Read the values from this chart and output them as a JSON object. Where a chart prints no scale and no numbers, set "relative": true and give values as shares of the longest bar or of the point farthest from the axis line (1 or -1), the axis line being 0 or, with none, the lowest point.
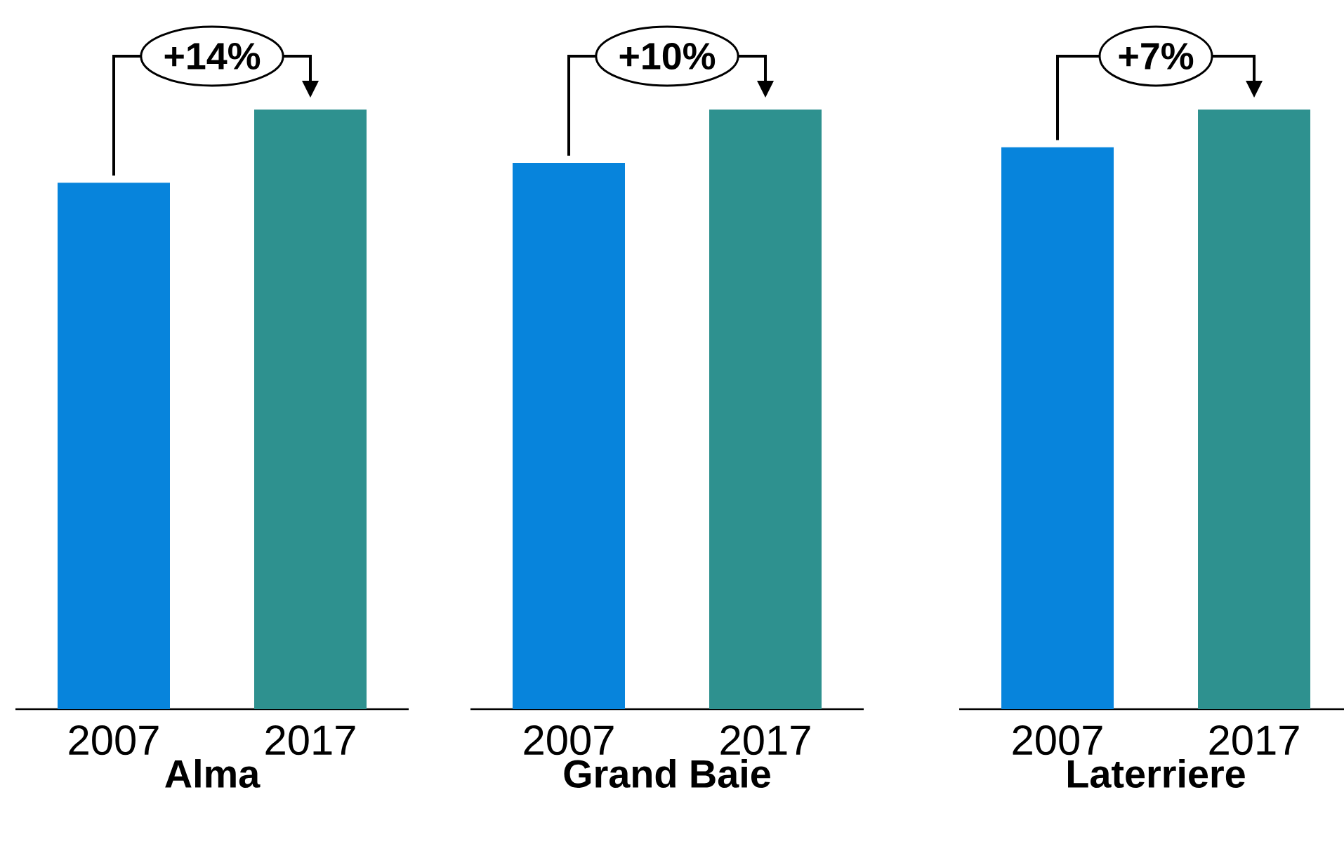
{
  "chart_data": [
    {
      "type": "bar",
      "relative": true,
      "categories": [
        "2007",
        "2017"
      ],
      "values": [
        0.878,
        1
      ],
      "colors": [
        "#0784dc",
        "#2e918f"
      ],
      "xlabel": "Alma",
      "annotations": [
        "+14%"
      ]
    },
    {
      "type": "bar",
      "relative": true,
      "categories": [
        "2007",
        "2017"
      ],
      "values": [
        0.911,
        1
      ],
      "colors": [
        "#0784dc",
        "#2e918f"
      ],
      "xlabel": "Grand Baie",
      "annotations": [
        "+10%"
      ]
    },
    {
      "type": "bar",
      "relative": true,
      "categories": [
        "2007",
        "2017"
      ],
      "values": [
        0.937,
        1
      ],
      "colors": [
        "#0784dc",
        "#2e918f"
      ],
      "xlabel": "Laterriere",
      "annotations": [
        "+7%"
      ]
    }
  ]
}
